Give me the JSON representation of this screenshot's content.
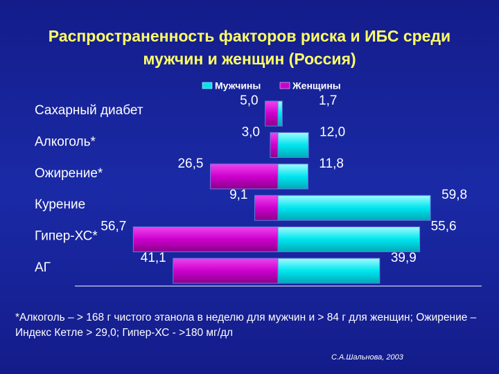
{
  "chart_data": {
    "type": "butterfly-bar",
    "title": "Распространенность факторов риска и ИБС среди мужчин и женщин  (Россия)",
    "categories": [
      "Сахарный диабет",
      "Алкоголь*",
      "Ожирение*",
      "Курение",
      "Гипер-ХС*",
      "АГ"
    ],
    "series": [
      {
        "name": "Мужчины",
        "color": "#00e5ee",
        "side": "right",
        "values": [
          1.7,
          12.0,
          11.8,
          59.8,
          55.6,
          39.9
        ],
        "value_labels": [
          "1,7",
          "12,0",
          "11,8",
          "59,8",
          "55,6",
          "39,9"
        ]
      },
      {
        "name": "Женщины",
        "color": "#cc00cc",
        "side": "left",
        "values": [
          5.0,
          3.0,
          26.5,
          9.1,
          56.7,
          41.1
        ],
        "value_labels": [
          "5,0",
          "3,0",
          "26,5",
          "9,1",
          "56,7",
          "41,1"
        ]
      }
    ],
    "footnote": "*Алкоголь – > 168 г чистого этанола в неделю для мужчин и  > 84 г  для женщин; Ожирение – Индекс Кетле > 29,0; Гипер-ХС -  >180 мг/дл",
    "source": "С.А.Шальнова, 2003"
  }
}
